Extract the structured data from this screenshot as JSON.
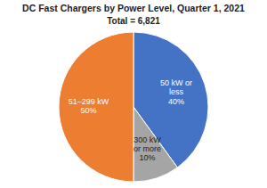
{
  "chart_data": {
    "type": "pie",
    "title": "DC Fast Chargers by Power Level, Quarter 1, 2021",
    "subtitle": "Total = 6,821",
    "categories": [
      "50 kW or\nless",
      "300 kW\nor more",
      "51–299 kW"
    ],
    "values": [
      40,
      10,
      50
    ],
    "value_labels": [
      "40%",
      "10%",
      "50%"
    ],
    "colors": [
      "#4472C4",
      "#A5A5A5",
      "#ED7D31"
    ],
    "data_labels": true
  }
}
